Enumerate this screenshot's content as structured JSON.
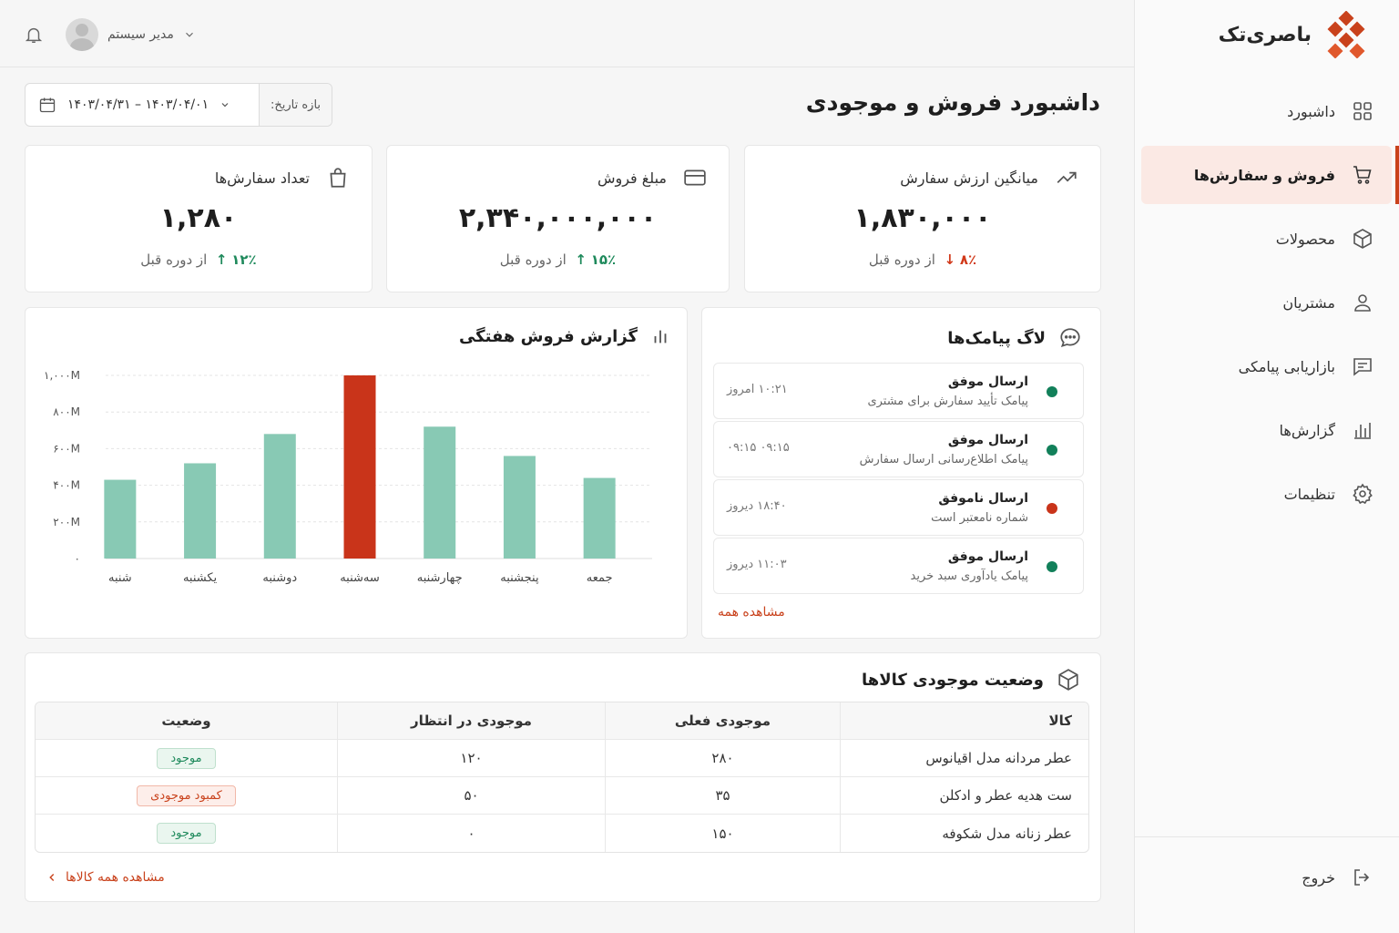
{
  "brand": {
    "name": "باصری‌تک"
  },
  "sidebar": {
    "items": [
      {
        "label": "داشبورد",
        "icon": "grid-icon"
      },
      {
        "label": "فروش و سفارش‌ها",
        "icon": "cart-icon",
        "active": true
      },
      {
        "label": "محصولات",
        "icon": "box-icon"
      },
      {
        "label": "مشتریان",
        "icon": "user-icon"
      },
      {
        "label": "بازاریابی پیامکی",
        "icon": "message-icon"
      },
      {
        "label": "گزارش‌ها",
        "icon": "bar-chart-icon"
      },
      {
        "label": "تنظیمات",
        "icon": "gear-icon"
      }
    ],
    "logout": "خروج"
  },
  "topbar": {
    "user_name": "مدیر سیستم"
  },
  "page": {
    "title": "داشبورد فروش و موجودی"
  },
  "date_filter": {
    "label": "بازه تاریخ:",
    "value": "۱۴۰۳/۰۴/۰۱ – ۱۴۰۳/۰۴/۳۱"
  },
  "kpis": [
    {
      "title": "میانگین ارزش سفارش",
      "value": "۱,۸۳۰,۰۰۰",
      "change": "۸٪",
      "direction": "down",
      "suffix": "از دوره قبل"
    },
    {
      "title": "مبلغ فروش",
      "value": "۲,۳۴۰,۰۰۰,۰۰۰",
      "change": "۱۵٪",
      "direction": "up",
      "suffix": "از دوره قبل"
    },
    {
      "title": "تعداد سفارش‌ها",
      "value": "۱,۲۸۰",
      "change": "۱۲٪",
      "direction": "up",
      "suffix": "از دوره قبل"
    }
  ],
  "sms_log": {
    "title": "لاگ پیامک‌ها",
    "items": [
      {
        "status": "ارسال موفق",
        "desc": "پیامک تأیید سفارش برای مشتری",
        "time": "۱۰:۲۱ امروز",
        "ok": true
      },
      {
        "status": "ارسال موفق",
        "desc": "پیامک اطلاع‌رسانی ارسال سفارش",
        "time": "۰۹:۱۵ ۰۹:۱۵",
        "ok": true
      },
      {
        "status": "ارسال ناموفق",
        "desc": "شماره نامعتبر است",
        "time": "۱۸:۴۰ دیروز",
        "ok": false
      },
      {
        "status": "ارسال موفق",
        "desc": "پیامک یادآوری سبد خرید",
        "time": "۱۱:۰۳ دیروز",
        "ok": true
      }
    ],
    "see_all": "مشاهده همه"
  },
  "chart_data": {
    "type": "bar",
    "title": "گزارش فروش هفتگی",
    "categories": [
      "شنبه",
      "یکشنبه",
      "دوشنبه",
      "سه‌شنبه",
      "چهارشنبه",
      "پنجشنبه",
      "جمعه"
    ],
    "values": [
      430,
      520,
      680,
      1000,
      720,
      560,
      440
    ],
    "highlight_index": 3,
    "yticks": [
      "۰",
      "۲۰۰M",
      "۴۰۰M",
      "۶۰۰M",
      "۸۰۰M",
      "۱,۰۰۰M"
    ],
    "ylim": [
      0,
      1000
    ],
    "colors": {
      "bar": "#88c9b4",
      "highlight": "#c9341a"
    }
  },
  "inventory": {
    "title": "وضعیت موجودی کالاها",
    "columns": [
      "کالا",
      "موجودی فعلی",
      "موجودی در انتظار",
      "وضعیت"
    ],
    "rows": [
      {
        "product": "عطر مردانه مدل اقیانوس",
        "current": "۲۸۰",
        "pending": "۱۲۰",
        "status": "موجود",
        "ok": true
      },
      {
        "product": "ست هدیه عطر و ادکلن",
        "current": "۳۵",
        "pending": "۵۰",
        "status": "کمبود موجودی",
        "ok": false
      },
      {
        "product": "عطر زنانه مدل شکوفه",
        "current": "۱۵۰",
        "pending": "۰",
        "status": "موجود",
        "ok": true
      }
    ],
    "see_all": "مشاهده همه کالاها"
  }
}
